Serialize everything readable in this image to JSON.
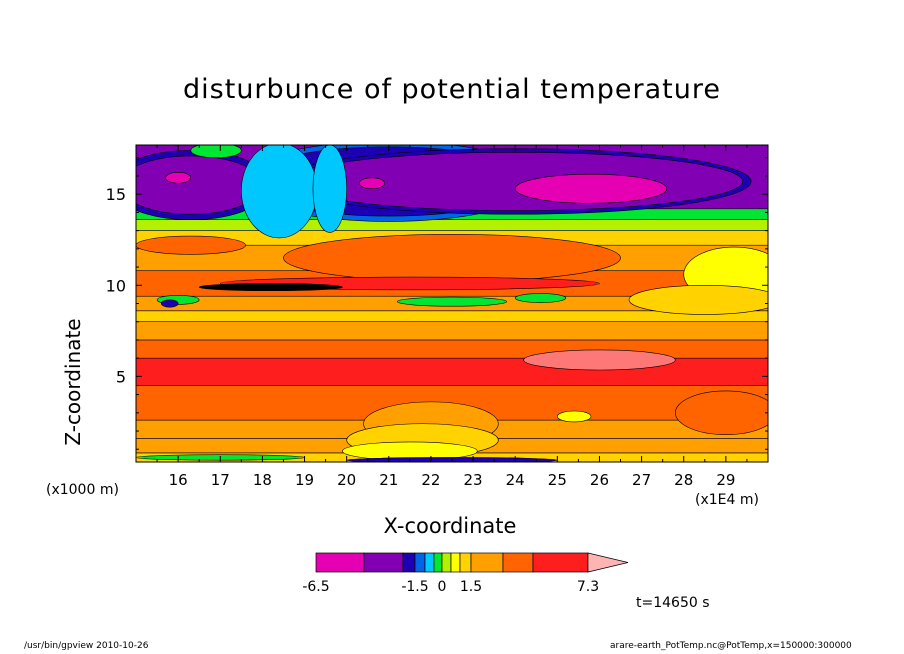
{
  "chart_data": {
    "type": "heatmap",
    "title": "disturbunce of potential temperature",
    "xlabel": "X-coordinate",
    "ylabel": "Z-coordinate",
    "x_units": "(x1E4 m)",
    "y_units": "(x1000 m)",
    "xlim": [
      15,
      30
    ],
    "ylim": [
      0.3,
      17.7
    ],
    "x_ticks": [
      16,
      17,
      18,
      19,
      20,
      21,
      22,
      23,
      24,
      25,
      26,
      27,
      28,
      29
    ],
    "y_ticks": [
      5,
      10,
      15
    ],
    "colorbar": {
      "min_label": "-6.5",
      "labels": [
        "-1.5",
        "0",
        "1.5"
      ],
      "max_label": "7.3",
      "colors": [
        "#e600b4",
        "#8200b4",
        "#1e00b4",
        "#0064e6",
        "#00c8ff",
        "#00e632",
        "#b4f000",
        "#ffff00",
        "#ffd200",
        "#ffa000",
        "#ff6400",
        "#ff1e1e",
        "#ff7878",
        "#ffb4b4"
      ]
    },
    "bands": [
      {
        "z": [
          0.3,
          0.8
        ],
        "color": "#ffd200"
      },
      {
        "z": [
          0.8,
          1.6
        ],
        "color": "#ffa000"
      },
      {
        "z": [
          1.6,
          2.6
        ],
        "color": "#ffa000"
      },
      {
        "z": [
          2.6,
          4.5
        ],
        "color": "#ff6400"
      },
      {
        "z": [
          4.5,
          6.0
        ],
        "color": "#ff1e1e"
      },
      {
        "z": [
          6.0,
          7.0
        ],
        "color": "#ff6400"
      },
      {
        "z": [
          7.0,
          8.0
        ],
        "color": "#ffa000"
      },
      {
        "z": [
          8.0,
          8.6
        ],
        "color": "#ffd200"
      },
      {
        "z": [
          8.6,
          9.4
        ],
        "color": "#ffa000"
      },
      {
        "z": [
          9.4,
          10.8
        ],
        "color": "#ff6400"
      },
      {
        "z": [
          10.8,
          12.2
        ],
        "color": "#ffa000"
      },
      {
        "z": [
          12.2,
          13.0
        ],
        "color": "#ffd200"
      },
      {
        "z": [
          13.0,
          13.6
        ],
        "color": "#b4f000"
      },
      {
        "z": [
          13.6,
          14.2
        ],
        "color": "#00e632"
      },
      {
        "z": [
          14.2,
          17.7
        ],
        "color": "#8200b4"
      }
    ],
    "features": [
      {
        "shape": "ellipse",
        "x": 21.0,
        "z": 15.7,
        "rx": 3.6,
        "rz": 2.2,
        "color": "#0064e6"
      },
      {
        "shape": "ellipse",
        "x": 21.0,
        "z": 15.7,
        "rx": 3.4,
        "rz": 1.9,
        "color": "#1e00b4"
      },
      {
        "shape": "ellipse",
        "x": 24.0,
        "z": 15.7,
        "rx": 5.6,
        "rz": 1.8,
        "color": "#1e00b4"
      },
      {
        "shape": "ellipse",
        "x": 24.0,
        "z": 15.7,
        "rx": 5.4,
        "rz": 1.6,
        "color": "#8200b4"
      },
      {
        "shape": "ellipse",
        "x": 16.3,
        "z": 15.5,
        "rx": 1.9,
        "rz": 1.9,
        "color": "#1e00b4"
      },
      {
        "shape": "ellipse",
        "x": 16.3,
        "z": 15.5,
        "rx": 1.7,
        "rz": 1.6,
        "color": "#8200b4"
      },
      {
        "shape": "ellipse",
        "x": 18.4,
        "z": 15.2,
        "rx": 0.9,
        "rz": 2.6,
        "color": "#00c8ff"
      },
      {
        "shape": "ellipse",
        "x": 19.6,
        "z": 15.3,
        "rx": 0.4,
        "rz": 2.4,
        "color": "#00c8ff"
      },
      {
        "shape": "ellipse",
        "x": 25.8,
        "z": 15.3,
        "rx": 1.8,
        "rz": 0.8,
        "color": "#e600b4"
      },
      {
        "shape": "ellipse",
        "x": 16.0,
        "z": 15.9,
        "rx": 0.3,
        "rz": 0.3,
        "color": "#e600b4"
      },
      {
        "shape": "ellipse",
        "x": 20.6,
        "z": 15.6,
        "rx": 0.3,
        "rz": 0.3,
        "color": "#e600b4"
      },
      {
        "shape": "ellipse",
        "x": 16.9,
        "z": 17.4,
        "rx": 0.6,
        "rz": 0.4,
        "color": "#00e632"
      },
      {
        "shape": "ellipse",
        "x": 22.5,
        "z": 11.5,
        "rx": 4.0,
        "rz": 1.3,
        "color": "#ff6400"
      },
      {
        "shape": "ellipse",
        "x": 16.3,
        "z": 12.2,
        "rx": 1.3,
        "rz": 0.5,
        "color": "#ff6400"
      },
      {
        "shape": "ellipse",
        "x": 29.2,
        "z": 10.6,
        "rx": 1.2,
        "rz": 1.5,
        "color": "#ffff00"
      },
      {
        "shape": "ellipse",
        "x": 28.5,
        "z": 9.2,
        "rx": 1.8,
        "rz": 0.8,
        "color": "#ffd200"
      },
      {
        "shape": "ellipse",
        "x": 21.5,
        "z": 10.1,
        "rx": 4.5,
        "rz": 0.35,
        "color": "#ff1e1e"
      },
      {
        "shape": "ellipse",
        "x": 18.2,
        "z": 9.9,
        "rx": 1.7,
        "rz": 0.2,
        "color": "#000000"
      },
      {
        "shape": "ellipse",
        "x": 16.0,
        "z": 9.2,
        "rx": 0.5,
        "rz": 0.25,
        "color": "#00e632"
      },
      {
        "shape": "ellipse",
        "x": 22.5,
        "z": 9.1,
        "rx": 1.3,
        "rz": 0.25,
        "color": "#00e632"
      },
      {
        "shape": "ellipse",
        "x": 24.6,
        "z": 9.3,
        "rx": 0.6,
        "rz": 0.25,
        "color": "#00e632"
      },
      {
        "shape": "ellipse",
        "x": 15.8,
        "z": 9.0,
        "rx": 0.2,
        "rz": 0.2,
        "color": "#1e00b4"
      },
      {
        "shape": "ellipse",
        "x": 26.0,
        "z": 5.9,
        "rx": 1.8,
        "rz": 0.55,
        "color": "#ff7878"
      },
      {
        "shape": "ellipse",
        "x": 29.0,
        "z": 3.0,
        "rx": 1.2,
        "rz": 1.2,
        "color": "#ff6400"
      },
      {
        "shape": "ellipse",
        "x": 22.0,
        "z": 2.4,
        "rx": 1.6,
        "rz": 1.2,
        "color": "#ffa000"
      },
      {
        "shape": "ellipse",
        "x": 21.8,
        "z": 1.5,
        "rx": 1.8,
        "rz": 0.9,
        "color": "#ffd200"
      },
      {
        "shape": "ellipse",
        "x": 21.5,
        "z": 0.9,
        "rx": 1.6,
        "rz": 0.5,
        "color": "#ffff00"
      },
      {
        "shape": "ellipse",
        "x": 25.4,
        "z": 2.8,
        "rx": 0.4,
        "rz": 0.3,
        "color": "#ffff00"
      },
      {
        "shape": "ellipse",
        "x": 22.5,
        "z": 0.4,
        "rx": 2.5,
        "rz": 0.15,
        "color": "#1e00b4"
      },
      {
        "shape": "ellipse",
        "x": 17.0,
        "z": 0.55,
        "rx": 2.0,
        "rz": 0.15,
        "color": "#00e632"
      }
    ]
  },
  "labels": {
    "units_left": "(x1000 m)",
    "units_right": "(x1E4 m)",
    "time": "t=14650 s",
    "footer_left": "/usr/bin/gpview   2010-10-26",
    "footer_right": "arare-earth_PotTemp.nc@PotTemp,x=150000:300000"
  }
}
